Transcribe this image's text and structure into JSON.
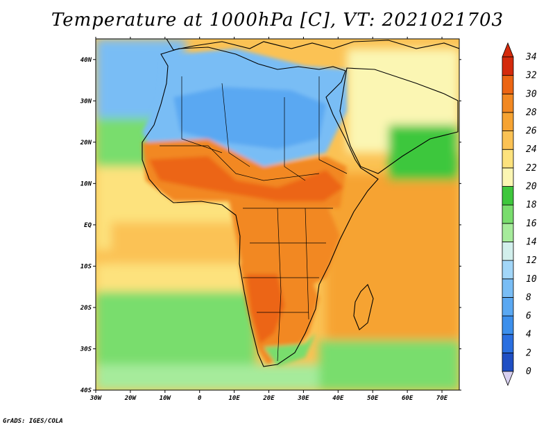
{
  "map": {
    "title": "Temperature at 1000hPa [C], VT: 2021021703",
    "credit": "GrADS: IGES/COLA",
    "lon_range": [
      -30,
      75
    ],
    "lat_range": [
      -40,
      45
    ],
    "lon_ticks": [
      {
        "value": -30,
        "label": "30W"
      },
      {
        "value": -20,
        "label": "20W"
      },
      {
        "value": -10,
        "label": "10W"
      },
      {
        "value": 0,
        "label": "0"
      },
      {
        "value": 10,
        "label": "10E"
      },
      {
        "value": 20,
        "label": "20E"
      },
      {
        "value": 30,
        "label": "30E"
      },
      {
        "value": 40,
        "label": "40E"
      },
      {
        "value": 50,
        "label": "50E"
      },
      {
        "value": 60,
        "label": "60E"
      },
      {
        "value": 70,
        "label": "70E"
      }
    ],
    "lat_ticks": [
      {
        "value": 40,
        "label": "40N"
      },
      {
        "value": 30,
        "label": "30N"
      },
      {
        "value": 20,
        "label": "20N"
      },
      {
        "value": 10,
        "label": "10N"
      },
      {
        "value": 0,
        "label": "EQ"
      },
      {
        "value": -10,
        "label": "10S"
      },
      {
        "value": -20,
        "label": "20S"
      },
      {
        "value": -30,
        "label": "30S"
      },
      {
        "value": -40,
        "label": "40S"
      }
    ],
    "colorbar": {
      "levels": [
        0,
        2,
        4,
        6,
        8,
        10,
        12,
        14,
        16,
        18,
        20,
        22,
        24,
        26,
        28,
        30,
        32,
        34
      ],
      "colors": [
        "#1c2c84",
        "#1f4fc4",
        "#2a6fe0",
        "#3c8fec",
        "#5aa8f2",
        "#79bdf5",
        "#a2d6f8",
        "#d2efec",
        "#a6eb9b",
        "#79dd6d",
        "#3ec73c",
        "#fbf6b3",
        "#fde27d",
        "#fbc254",
        "#f6a332",
        "#f28821",
        "#ec6513",
        "#d42a0c",
        "#d8d0f0"
      ]
    },
    "colors": {
      "ocean_warm": "#f6a332",
      "ocean_cool": "#fde27d",
      "land_hot": "#ec6513",
      "land_cool": "#79bdf5",
      "border": "#000000"
    }
  }
}
